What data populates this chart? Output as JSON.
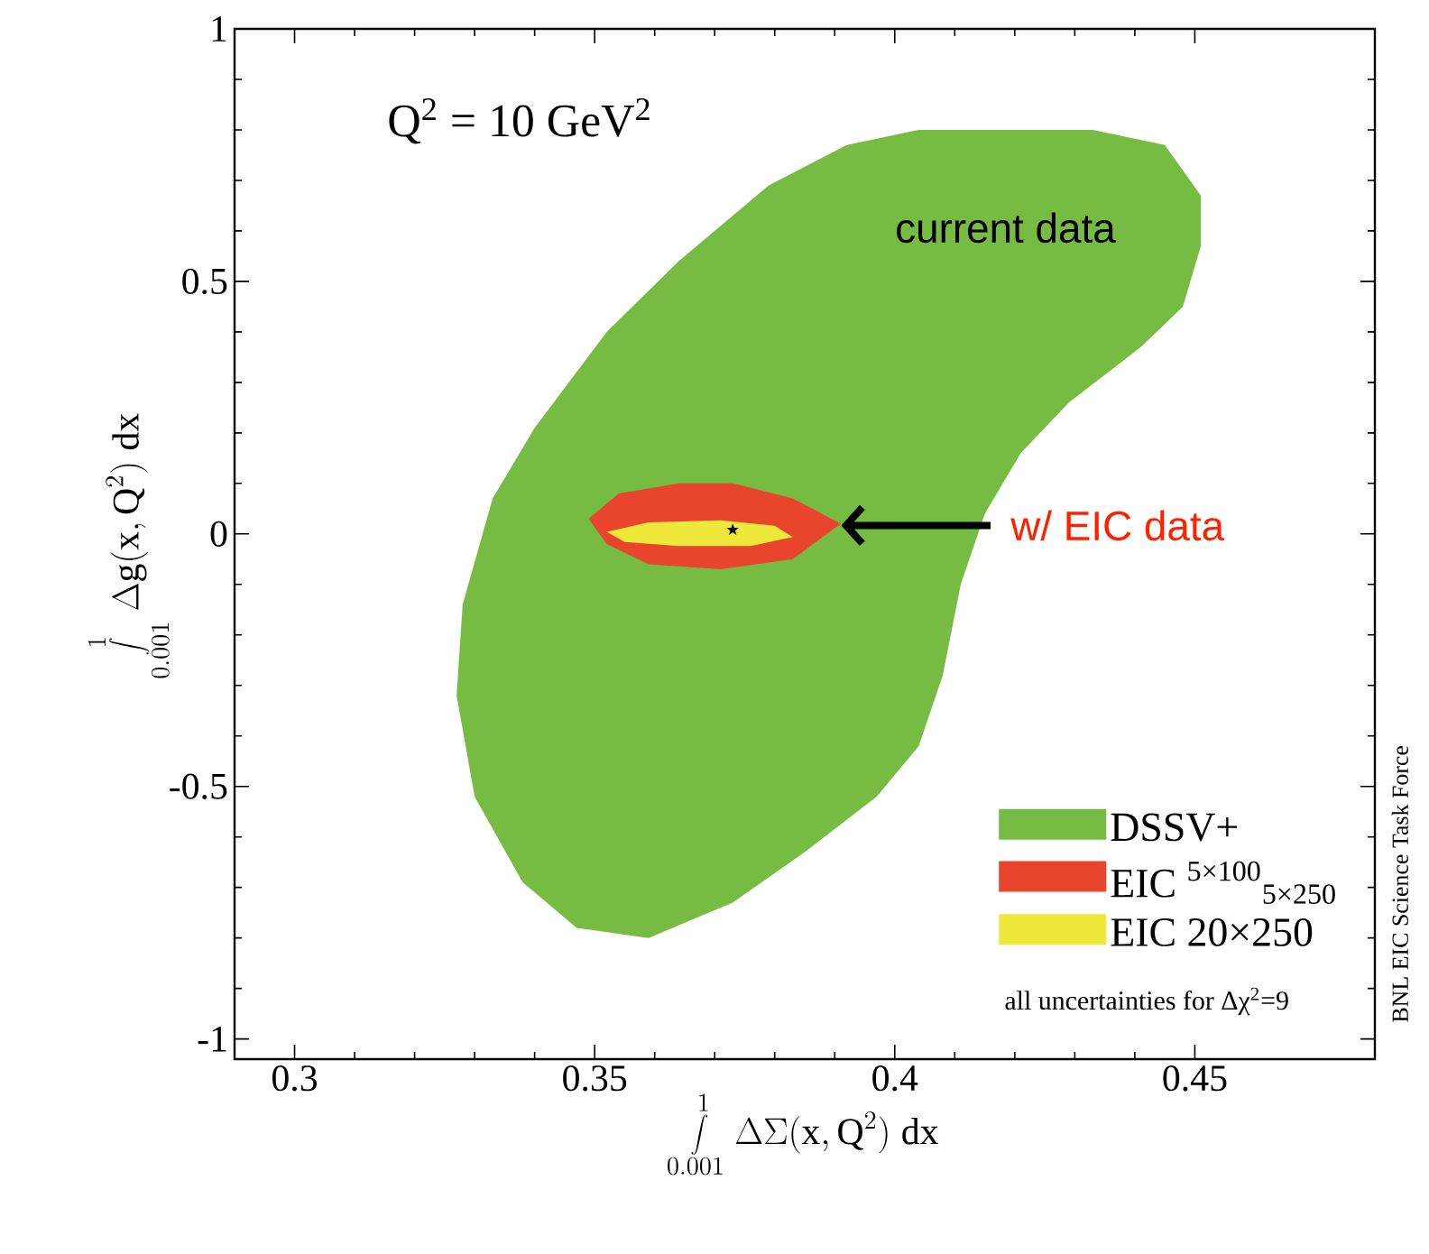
{
  "chart_data": {
    "type": "area",
    "title": "Q$^{2}$ = 10 GeV$^{2}$",
    "xlabel": "\\int\\limits_{0.001}^{1}\\Delta\\Sigma(\\mathrm{x},\\mathrm{Q}^{2})\\;\\mathrm{dx}",
    "ylabel": "\\int\\limits_{0.001}^{1}\\Delta \\mathrm{g}(\\mathrm{x},\\mathrm{Q}^{2})\\;\\mathrm{dx}",
    "xlim": [
      0.29,
      0.48
    ],
    "ylim": [
      -1.04,
      1
    ],
    "xticks": [
      0.3,
      0.35,
      0.4,
      0.45
    ],
    "yticks": [
      -1,
      -0.5,
      0,
      0.5,
      1
    ],
    "legend": "bottom right",
    "series": [
      {
        "name": "DSSV+",
        "type": "area",
        "color": "#76bc43",
        "x": [
          0.404,
          0.433,
          0.445,
          0.451,
          0.451,
          0.448,
          0.441,
          0.429,
          0.421,
          0.415,
          0.411,
          0.408,
          0.404,
          0.397,
          0.385,
          0.373,
          0.359,
          0.347,
          0.338,
          0.33,
          0.327,
          0.328,
          0.333,
          0.34,
          0.352,
          0.364,
          0.379,
          0.392
        ],
        "values": [
          0.8,
          0.8,
          0.77,
          0.67,
          0.57,
          0.45,
          0.37,
          0.26,
          0.16,
          0.04,
          -0.1,
          -0.28,
          -0.42,
          -0.52,
          -0.63,
          -0.73,
          -0.8,
          -0.78,
          -0.69,
          -0.52,
          -0.32,
          -0.14,
          0.07,
          0.21,
          0.4,
          0.54,
          0.69,
          0.77
        ]
      },
      {
        "name": "EIC $^{5×100}$$_{5×250}$",
        "type": "area",
        "color": "#e8452c",
        "x": [
          0.349,
          0.354,
          0.364,
          0.373,
          0.383,
          0.391,
          0.383,
          0.371,
          0.359,
          0.352
        ],
        "values": [
          0.03,
          0.08,
          0.1,
          0.1,
          0.07,
          0.02,
          -0.05,
          -0.07,
          -0.06,
          -0.02
        ]
      },
      {
        "name": "EIC 20×250",
        "type": "area",
        "color": "#eee83a",
        "x": [
          0.352,
          0.359,
          0.371,
          0.38,
          0.383,
          0.376,
          0.364,
          0.355
        ],
        "values": [
          0.004,
          0.023,
          0.027,
          0.016,
          -0.006,
          -0.024,
          -0.024,
          -0.016
        ]
      },
      {
        "type": "scatter",
        "marker": "star",
        "color": "#000000",
        "x": [
          0.373
        ],
        "values": [
          0.008
        ]
      }
    ],
    "annotations": [
      "current data",
      "w/ EIC data",
      "all uncertainties for Δχ$^{2}$=9",
      "BNL EIC Science Task Force"
    ]
  }
}
